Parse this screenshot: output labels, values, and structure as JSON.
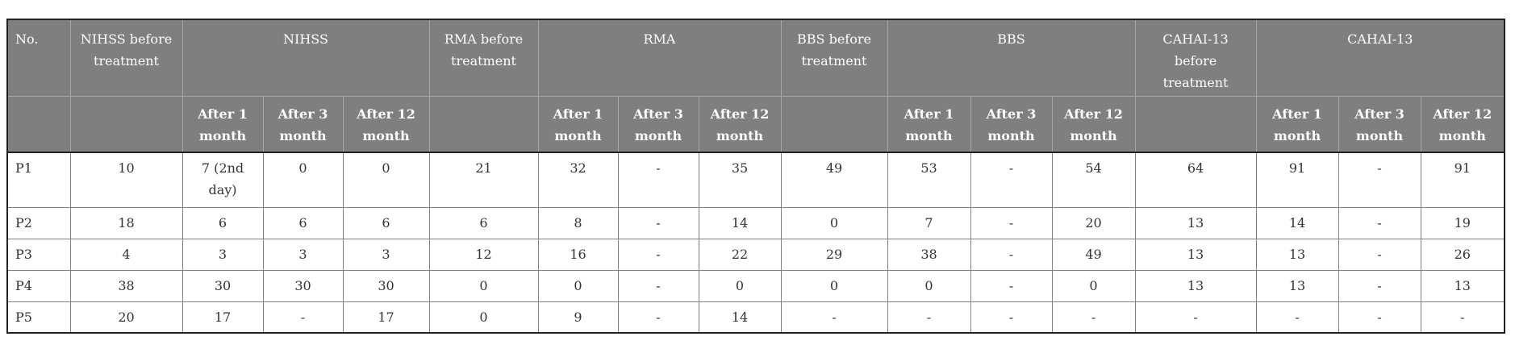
{
  "table": {
    "header_row1": [
      {
        "label": "No.",
        "colspan": 1
      },
      {
        "label": "NIHSS before treatment",
        "colspan": 1
      },
      {
        "label": "NIHSS",
        "colspan": 3
      },
      {
        "label": "RMA before treatment",
        "colspan": 1
      },
      {
        "label": "RMA",
        "colspan": 3
      },
      {
        "label": "BBS before treatment",
        "colspan": 1
      },
      {
        "label": "BBS",
        "colspan": 3
      },
      {
        "label": "CAHAI-13 before treatment",
        "colspan": 1
      },
      {
        "label": "CAHAI-13",
        "colspan": 3
      }
    ],
    "subheader_labels": [
      "After 1 month",
      "After 3 month",
      "After 12 month"
    ],
    "rows": [
      {
        "no": "P1",
        "values": [
          "10",
          "7 (2nd day)",
          "0",
          "0",
          "21",
          "32",
          "-",
          "35",
          "49",
          "53",
          "-",
          "54",
          "64",
          "91",
          "-",
          "91"
        ]
      },
      {
        "no": "P2",
        "values": [
          "18",
          "6",
          "6",
          "6",
          "6",
          "8",
          "-",
          "14",
          "0",
          "7",
          "-",
          "20",
          "13",
          "14",
          "-",
          "19"
        ]
      },
      {
        "no": "P3",
        "values": [
          "4",
          "3",
          "3",
          "3",
          "12",
          "16",
          "-",
          "22",
          "29",
          "38",
          "-",
          "49",
          "13",
          "13",
          "-",
          "26"
        ]
      },
      {
        "no": "P4",
        "values": [
          "38",
          "30",
          "30",
          "30",
          "0",
          "0",
          "-",
          "0",
          "0",
          "0",
          "-",
          "0",
          "13",
          "13",
          "-",
          "13"
        ]
      },
      {
        "no": "P5",
        "values": [
          "20",
          "17",
          "-",
          "17",
          "0",
          "9",
          "-",
          "14",
          "-",
          "-",
          "-",
          "-",
          "-",
          "-",
          "-",
          "-"
        ]
      }
    ]
  },
  "colors": {
    "header_bg": "#7f7f7f",
    "header_text": "#fdfdfd",
    "body_text": "#333333",
    "inner_grid": "#808080",
    "header_grid": "#a6a6a6",
    "frame": "#222222"
  }
}
